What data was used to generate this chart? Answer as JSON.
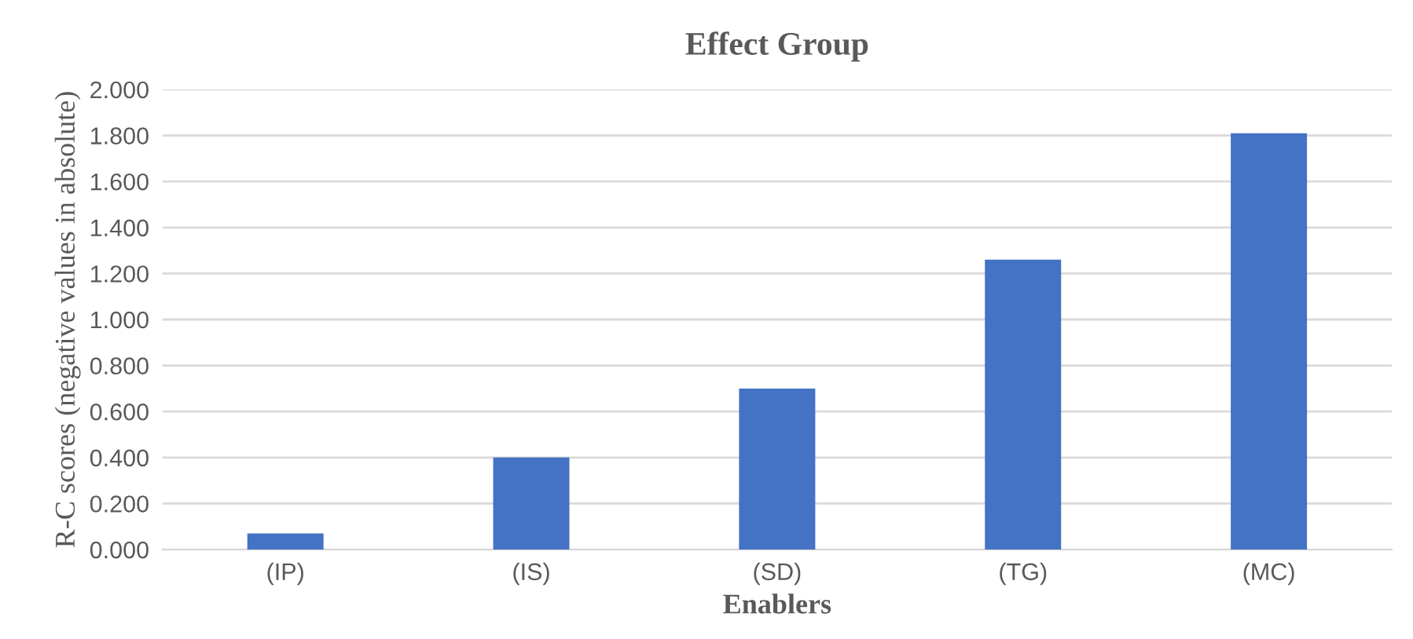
{
  "chart_data": {
    "type": "bar",
    "title": "Effect Group",
    "xlabel": "Enablers",
    "ylabel": "R-C scores (negative values in absolute)",
    "categories": [
      "(IP)",
      "(IS)",
      "(SD)",
      "(TG)",
      "(MC)"
    ],
    "values": [
      0.07,
      0.4,
      0.7,
      1.26,
      1.81
    ],
    "color": "#4472c4",
    "ylim": [
      0,
      2.0
    ],
    "yticks": [
      {
        "value": 0,
        "label": "0.000"
      },
      {
        "value": 0.2,
        "label": "0.200"
      },
      {
        "value": 0.4,
        "label": "0.400"
      },
      {
        "value": 0.6,
        "label": "0.600"
      },
      {
        "value": 0.8,
        "label": "0.800"
      },
      {
        "value": 1.0,
        "label": "1.000"
      },
      {
        "value": 1.2,
        "label": "1.200"
      },
      {
        "value": 1.4,
        "label": "1.400"
      },
      {
        "value": 1.6,
        "label": "1.600"
      },
      {
        "value": 1.8,
        "label": "1.800"
      },
      {
        "value": 2.0,
        "label": "2.000"
      }
    ],
    "grid": "y"
  }
}
